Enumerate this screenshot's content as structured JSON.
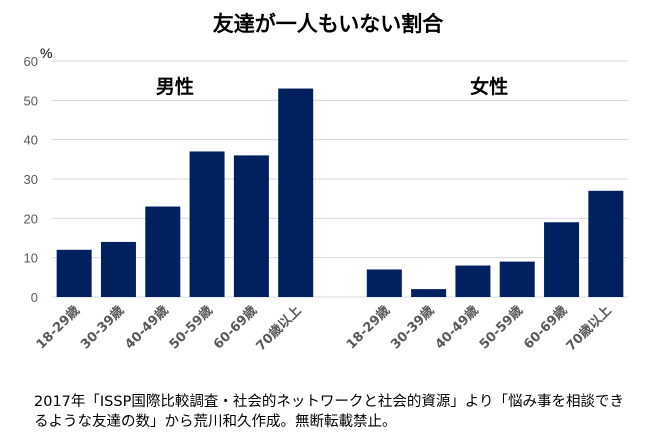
{
  "chart_data": {
    "type": "bar",
    "title": "友達が一人もいない割合",
    "ylabel": "%",
    "ylim": [
      0,
      60
    ],
    "yticks": [
      0,
      10,
      20,
      30,
      40,
      50,
      60
    ],
    "grid": true,
    "color": "#00205f",
    "groups": [
      {
        "name": "男性",
        "categories": [
          "18-29歳",
          "30-39歳",
          "40-49歳",
          "50-59歳",
          "60-69歳",
          "70歳以上"
        ],
        "values": [
          12,
          14,
          23,
          37,
          36,
          53
        ]
      },
      {
        "name": "女性",
        "categories": [
          "18-29歳",
          "30-39歳",
          "40-49歳",
          "50-59歳",
          "60-69歳",
          "70歳以上"
        ],
        "values": [
          7,
          2,
          8,
          9,
          19,
          27
        ]
      }
    ]
  },
  "note": "2017年「ISSP国際比較調査・社会的ネットワークと社会的資源」より「悩み事を相談できるような友達の数」から荒川和久作成。無断転載禁止。"
}
